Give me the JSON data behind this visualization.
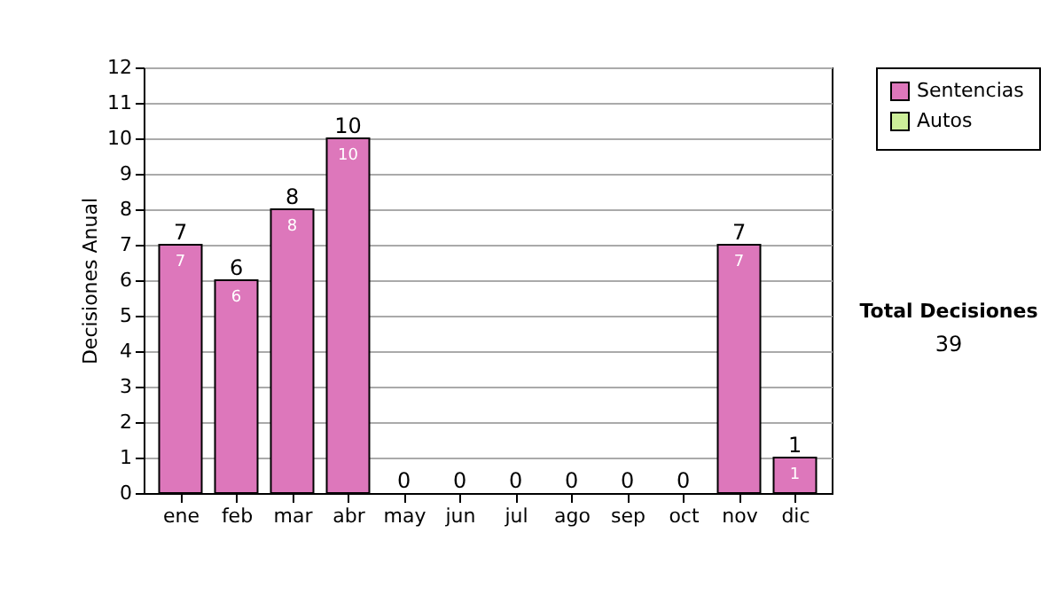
{
  "chart_data": {
    "type": "bar",
    "stacked": true,
    "ylabel": "Decisiones Anual",
    "categories": [
      "ene",
      "feb",
      "mar",
      "abr",
      "may",
      "jun",
      "jul",
      "ago",
      "sep",
      "oct",
      "nov",
      "dic"
    ],
    "series": [
      {
        "name": "Sentencias",
        "color": "#dd77bb",
        "values": [
          7,
          6,
          8,
          10,
          0,
          0,
          0,
          0,
          0,
          0,
          7,
          1
        ],
        "value_labels": [
          "7",
          "6",
          "8",
          "10",
          null,
          null,
          null,
          null,
          null,
          null,
          "7",
          "1"
        ]
      },
      {
        "name": "Autos",
        "color": "#ccee99",
        "values": [
          0,
          0,
          0,
          0,
          0,
          0,
          0,
          0,
          0,
          0,
          0,
          0
        ]
      }
    ],
    "totals": [
      "7",
      "6",
      "8",
      "10",
      "0",
      "0",
      "0",
      "0",
      "0",
      "0",
      "7",
      "1"
    ],
    "ylim": [
      0,
      12
    ],
    "yticks": [
      0,
      1,
      2,
      3,
      4,
      5,
      6,
      7,
      8,
      9,
      10,
      11,
      12
    ],
    "grid": "y",
    "legend": "right",
    "annotations": [
      "Total Decisiones",
      "39"
    ]
  }
}
